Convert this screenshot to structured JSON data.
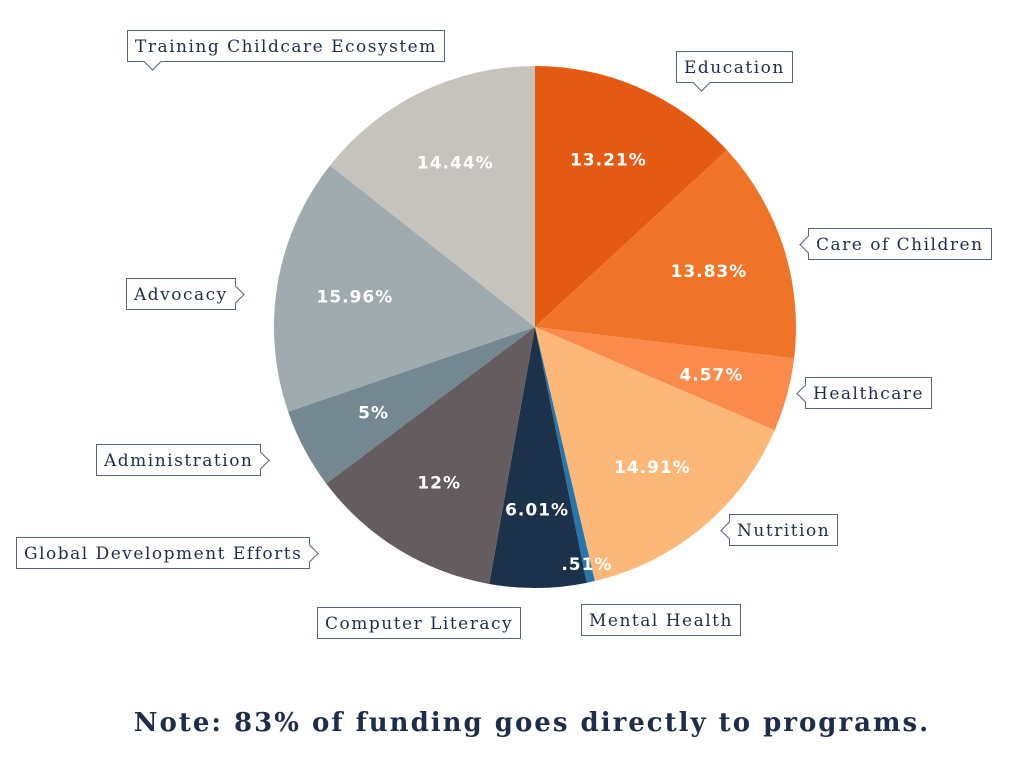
{
  "chart_data": {
    "type": "pie",
    "start_angle_deg": 0,
    "direction": "clockwise",
    "slices": [
      {
        "label": "Education",
        "value": 13.21,
        "display": "13.21%",
        "color": "#e45a12"
      },
      {
        "label": "Care of Children",
        "value": 13.83,
        "display": "13.83%",
        "color": "#f07428"
      },
      {
        "label": "Healthcare",
        "value": 4.57,
        "display": "4.57%",
        "color": "#fb8a4d"
      },
      {
        "label": "Nutrition",
        "value": 14.91,
        "display": "14.91%",
        "color": "#fdb877"
      },
      {
        "label": "Mental Health",
        "value": 0.51,
        "display": ".51%",
        "color": "#2577ad"
      },
      {
        "label": "Computer Literacy",
        "value": 6.01,
        "display": "6.01%",
        "color": "#1c324a"
      },
      {
        "label": "Global Development Efforts",
        "value": 12,
        "display": "12%",
        "color": "#655c60"
      },
      {
        "label": "Administration",
        "value": 5,
        "display": "5%",
        "color": "#748891"
      },
      {
        "label": "Advocacy",
        "value": 15.96,
        "display": "15.96%",
        "color": "#a0abb0"
      },
      {
        "label": "Training Childcare Ecosystem",
        "value": 14.44,
        "display": "14.44%",
        "color": "#c6c3bc"
      }
    ]
  },
  "note": "Note: 83% of funding goes directly to programs."
}
